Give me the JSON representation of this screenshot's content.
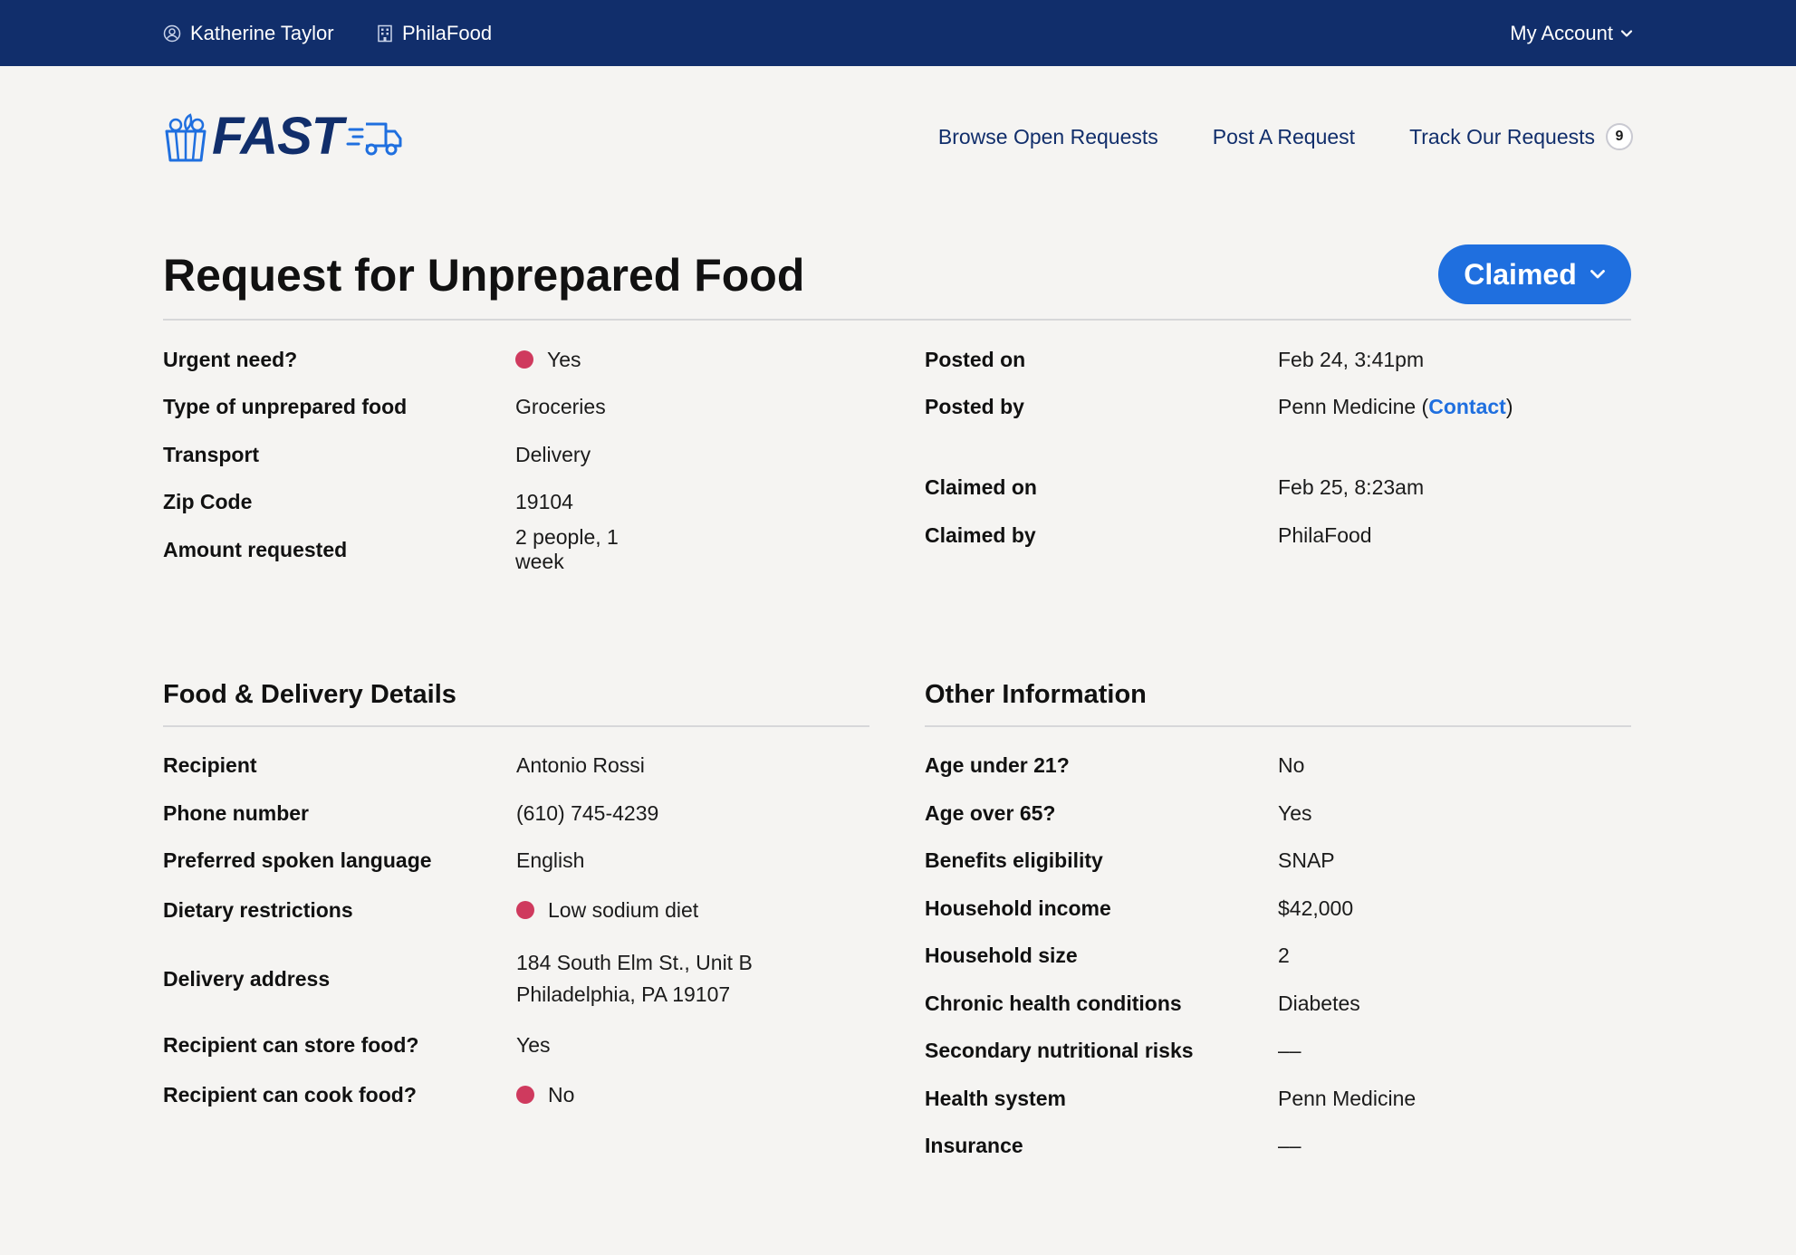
{
  "topbar": {
    "user_name": "Katherine Taylor",
    "org_name": "PhilaFood",
    "account_label": "My Account"
  },
  "header": {
    "logo_text": "FAST",
    "nav": {
      "browse": "Browse Open Requests",
      "post": "Post A Request",
      "track": "Track Our Requests",
      "track_count": "9"
    }
  },
  "page": {
    "title": "Request for Unprepared Food",
    "status": "Claimed"
  },
  "summary_left": [
    {
      "label": "Urgent need?",
      "value": "Yes",
      "flag": true
    },
    {
      "label": "Type of unprepared food",
      "value": "Groceries"
    },
    {
      "label": "Transport",
      "value": "Delivery"
    },
    {
      "label": "Zip Code",
      "value": "19104"
    },
    {
      "label": "Amount requested",
      "value": "2 people, 1 week"
    }
  ],
  "summary_right": {
    "posted_on_label": "Posted on",
    "posted_on": "Feb 24, 3:41pm",
    "posted_by_label": "Posted by",
    "posted_by": "Penn Medicine",
    "contact_label": "Contact",
    "claimed_on_label": "Claimed on",
    "claimed_on": "Feb 25, 8:23am",
    "claimed_by_label": "Claimed by",
    "claimed_by": "PhilaFood"
  },
  "food_delivery": {
    "title": "Food & Delivery Details",
    "recipient_label": "Recipient",
    "recipient": "Antonio Rossi",
    "phone_label": "Phone number",
    "phone": "(610) 745-4239",
    "language_label": "Preferred spoken language",
    "language": "English",
    "dietary_label": "Dietary restrictions",
    "dietary": "Low sodium diet",
    "address_label": "Delivery address",
    "address_line1": "184 South Elm St., Unit B",
    "address_line2": "Philadelphia, PA 19107",
    "store_label": "Recipient can store food?",
    "store": "Yes",
    "cook_label": "Recipient can cook food?",
    "cook": "No"
  },
  "other_info": {
    "title": "Other Information",
    "rows": [
      {
        "label": "Age under 21?",
        "value": "No"
      },
      {
        "label": "Age over 65?",
        "value": "Yes"
      },
      {
        "label": "Benefits eligibility",
        "value": "SNAP"
      },
      {
        "label": "Household income",
        "value": "$42,000"
      },
      {
        "label": "Household size",
        "value": "2"
      },
      {
        "label": "Chronic health conditions",
        "value": "Diabetes"
      },
      {
        "label": "Secondary nutritional risks",
        "value": "––"
      },
      {
        "label": "Health system",
        "value": "Penn Medicine"
      },
      {
        "label": "Insurance",
        "value": "––"
      }
    ]
  },
  "colors": {
    "topbar": "#112e6b",
    "accent": "#1f6fdf",
    "alert_dot": "#cf3a5e"
  }
}
